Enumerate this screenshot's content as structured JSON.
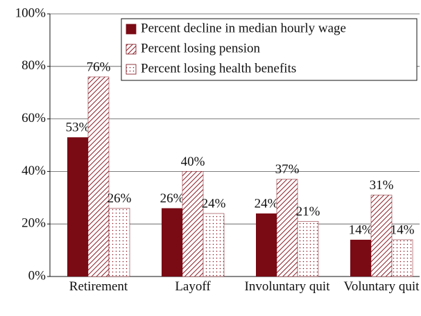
{
  "chart_data": {
    "type": "bar",
    "categories": [
      "Retirement",
      "Layoff",
      "Involuntary quit",
      "Voluntary quit"
    ],
    "series": [
      {
        "name": "Percent decline in median hourly wage",
        "color": "#7a0a14",
        "pattern": "solid",
        "values": [
          53,
          26,
          24,
          14
        ],
        "value_labels": [
          "53%",
          "26%",
          "24%",
          "14%"
        ]
      },
      {
        "name": "Percent losing pension",
        "color": "#7a0a14",
        "pattern": "hatch",
        "values": [
          76,
          40,
          37,
          31
        ],
        "value_labels": [
          "76%",
          "40%",
          "37%",
          "31%"
        ]
      },
      {
        "name": "Percent losing health benefits",
        "color": "#7a0a14",
        "pattern": "dots",
        "values": [
          26,
          24,
          21,
          14
        ],
        "value_labels": [
          "26%",
          "24%",
          "21%",
          "14%"
        ]
      }
    ],
    "ylim": [
      0,
      100
    ],
    "yticks": [
      {
        "value": 0,
        "label": "0%"
      },
      {
        "value": 20,
        "label": "20%"
      },
      {
        "value": 40,
        "label": "40%"
      },
      {
        "value": 60,
        "label": "60%"
      },
      {
        "value": 80,
        "label": "80%"
      },
      {
        "value": 100,
        "label": "100%"
      }
    ],
    "grid": true,
    "legend": "upper right"
  }
}
